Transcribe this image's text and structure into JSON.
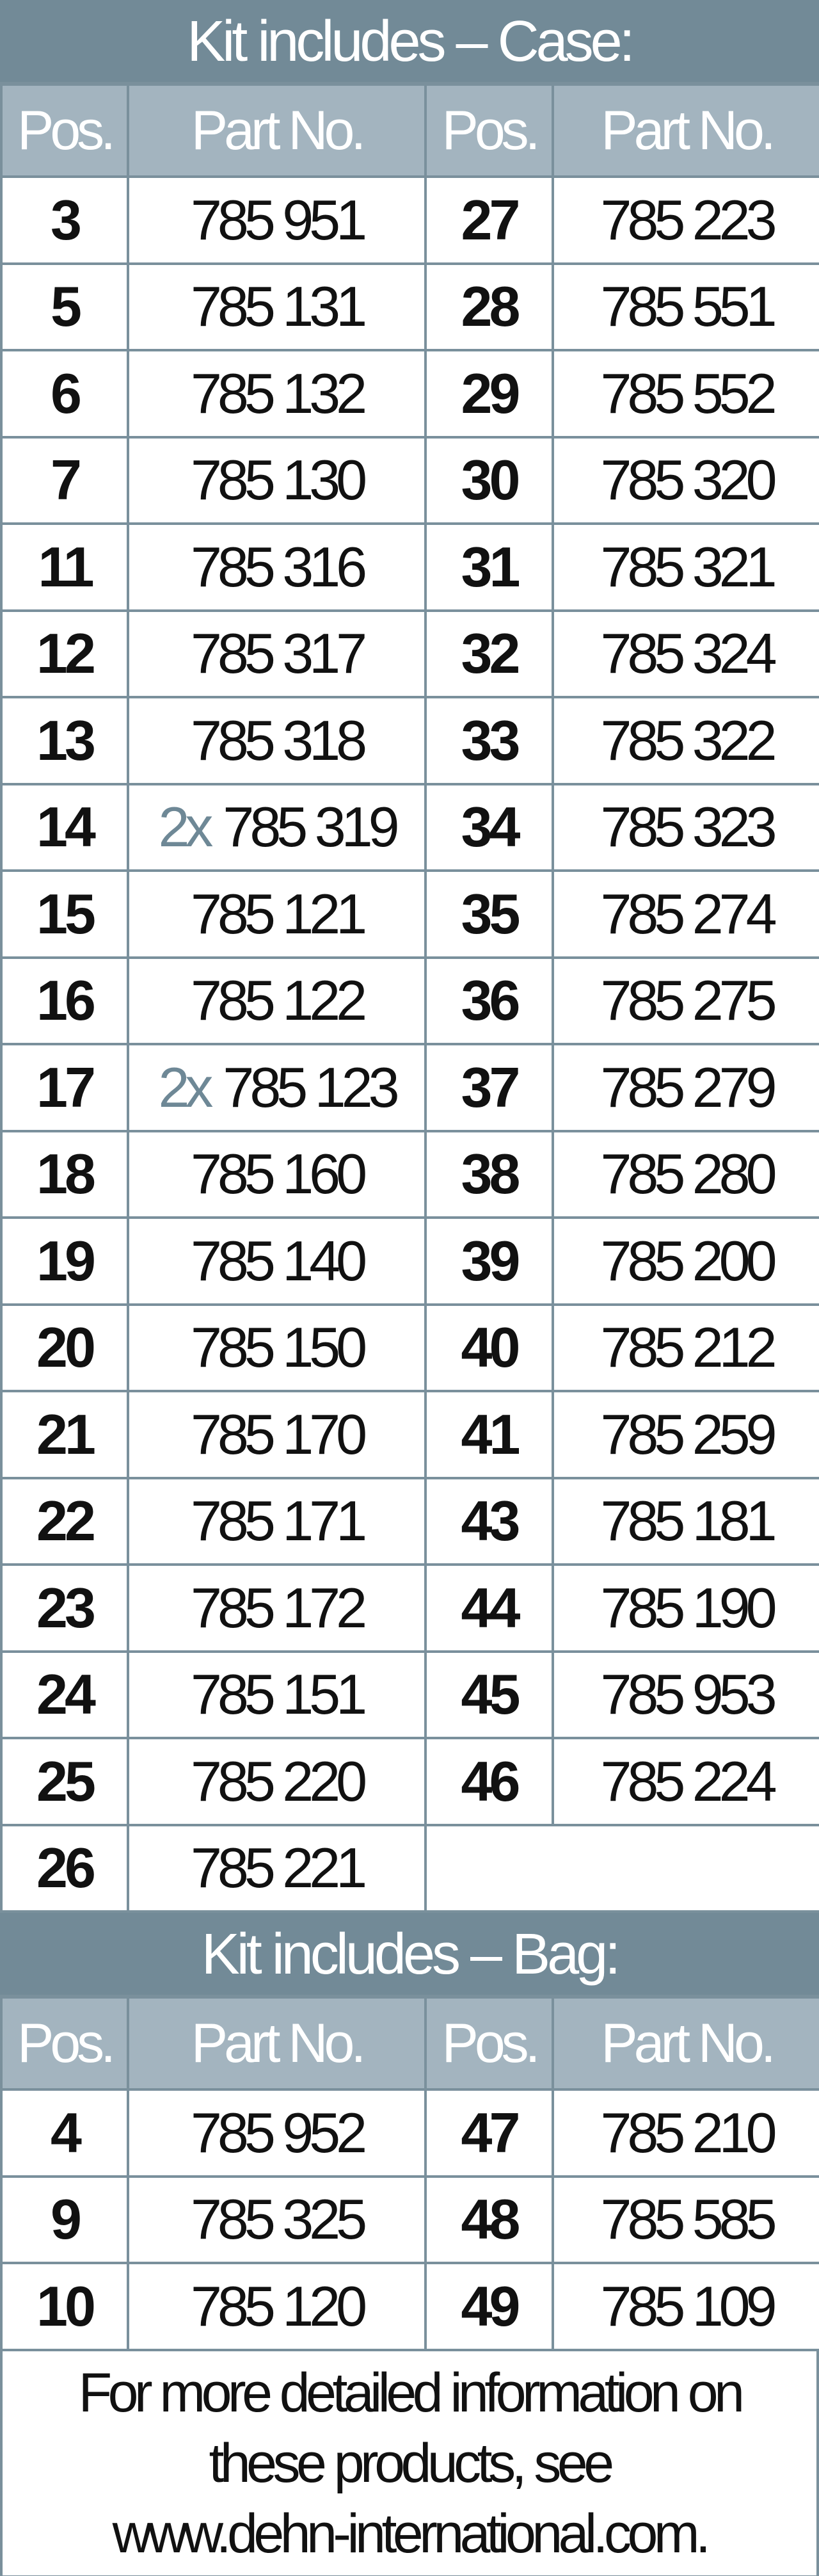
{
  "case": {
    "title": "Kit includes – Case:",
    "headers": [
      "Pos.",
      "Part No.",
      "Pos.",
      "Part No."
    ],
    "rows": [
      [
        {
          "pos": "3",
          "part": "785 951"
        },
        {
          "pos": "27",
          "part": "785 223"
        }
      ],
      [
        {
          "pos": "5",
          "part": "785 131"
        },
        {
          "pos": "28",
          "part": "785 551"
        }
      ],
      [
        {
          "pos": "6",
          "part": "785 132"
        },
        {
          "pos": "29",
          "part": "785 552"
        }
      ],
      [
        {
          "pos": "7",
          "part": "785 130"
        },
        {
          "pos": "30",
          "part": "785 320"
        }
      ],
      [
        {
          "pos": "11",
          "part": "785 316"
        },
        {
          "pos": "31",
          "part": "785 321"
        }
      ],
      [
        {
          "pos": "12",
          "part": "785 317"
        },
        {
          "pos": "32",
          "part": "785 324"
        }
      ],
      [
        {
          "pos": "13",
          "part": "785 318"
        },
        {
          "pos": "33",
          "part": "785 322"
        }
      ],
      [
        {
          "pos": "14",
          "qty": "2x",
          "part": "785 319"
        },
        {
          "pos": "34",
          "part": "785 323"
        }
      ],
      [
        {
          "pos": "15",
          "part": "785 121"
        },
        {
          "pos": "35",
          "part": "785 274"
        }
      ],
      [
        {
          "pos": "16",
          "part": "785 122"
        },
        {
          "pos": "36",
          "part": "785 275"
        }
      ],
      [
        {
          "pos": "17",
          "qty": "2x",
          "part": "785 123"
        },
        {
          "pos": "37",
          "part": "785 279"
        }
      ],
      [
        {
          "pos": "18",
          "part": "785 160"
        },
        {
          "pos": "38",
          "part": "785 280"
        }
      ],
      [
        {
          "pos": "19",
          "part": "785 140"
        },
        {
          "pos": "39",
          "part": "785 200"
        }
      ],
      [
        {
          "pos": "20",
          "part": "785 150"
        },
        {
          "pos": "40",
          "part": "785 212"
        }
      ],
      [
        {
          "pos": "21",
          "part": "785 170"
        },
        {
          "pos": "41",
          "part": "785 259"
        }
      ],
      [
        {
          "pos": "22",
          "part": "785 171"
        },
        {
          "pos": "43",
          "part": "785 181"
        }
      ],
      [
        {
          "pos": "23",
          "part": "785 172"
        },
        {
          "pos": "44",
          "part": "785 190"
        }
      ],
      [
        {
          "pos": "24",
          "part": "785 151"
        },
        {
          "pos": "45",
          "part": "785 953"
        }
      ],
      [
        {
          "pos": "25",
          "part": "785 220"
        },
        {
          "pos": "46",
          "part": "785 224"
        }
      ],
      [
        {
          "pos": "26",
          "part": "785 221"
        }
      ]
    ]
  },
  "bag": {
    "title": "Kit includes – Bag:",
    "headers": [
      "Pos.",
      "Part No.",
      "Pos.",
      "Part No."
    ],
    "rows": [
      [
        {
          "pos": "4",
          "part": "785 952"
        },
        {
          "pos": "47",
          "part": "785 210"
        }
      ],
      [
        {
          "pos": "9",
          "part": "785 325"
        },
        {
          "pos": "48",
          "part": "785 585"
        }
      ],
      [
        {
          "pos": "10",
          "part": "785 120"
        },
        {
          "pos": "49",
          "part": "785 109"
        }
      ]
    ]
  },
  "footer": {
    "lines": [
      "For more detailed information on",
      "these products, see",
      "www.dehn-international.com."
    ]
  },
  "colors": {
    "title_bg": "#728a97",
    "header_bg": "#a3b4bf",
    "border": "#7a909c",
    "quantity_text": "#6e8896"
  }
}
